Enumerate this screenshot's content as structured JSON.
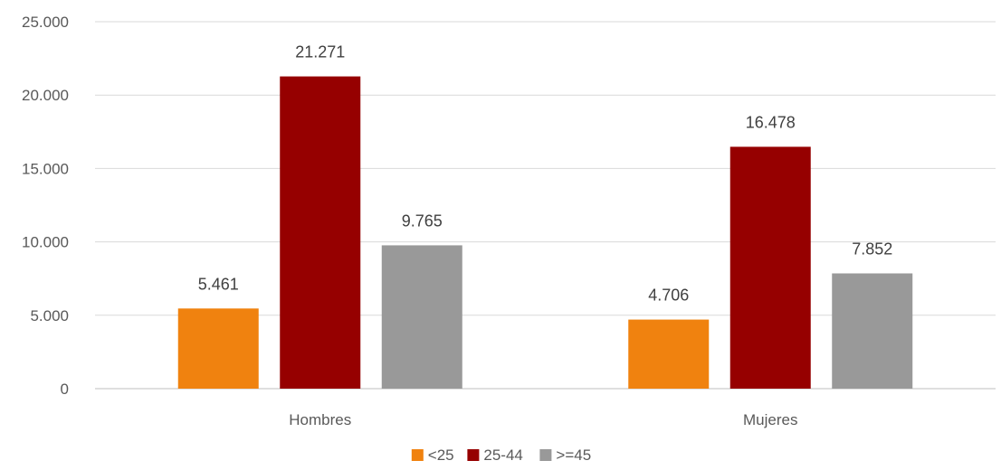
{
  "chart_data": {
    "type": "bar",
    "title": "",
    "xlabel": "",
    "ylabel": "",
    "categories": [
      "Hombres",
      "Mujeres"
    ],
    "series": [
      {
        "name": "<25",
        "color": "#f0820f",
        "values": [
          5461,
          4706
        ],
        "labels": [
          "5.461",
          "4.706"
        ]
      },
      {
        "name": "25-44",
        "color": "#960000",
        "values": [
          21271,
          16478
        ],
        "labels": [
          "21.271",
          "16.478"
        ]
      },
      {
        "name": ">=45",
        "color": "#999999",
        "values": [
          9765,
          7852
        ],
        "labels": [
          "9.765",
          "7.852"
        ]
      }
    ],
    "ylim": [
      0,
      25000
    ],
    "yticks": [
      0,
      5000,
      10000,
      15000,
      20000,
      25000
    ],
    "ytick_labels": [
      "0",
      "5.000",
      "10.000",
      "15.000",
      "20.000",
      "25.000"
    ],
    "grid": true,
    "legend_position": "bottom-center"
  }
}
